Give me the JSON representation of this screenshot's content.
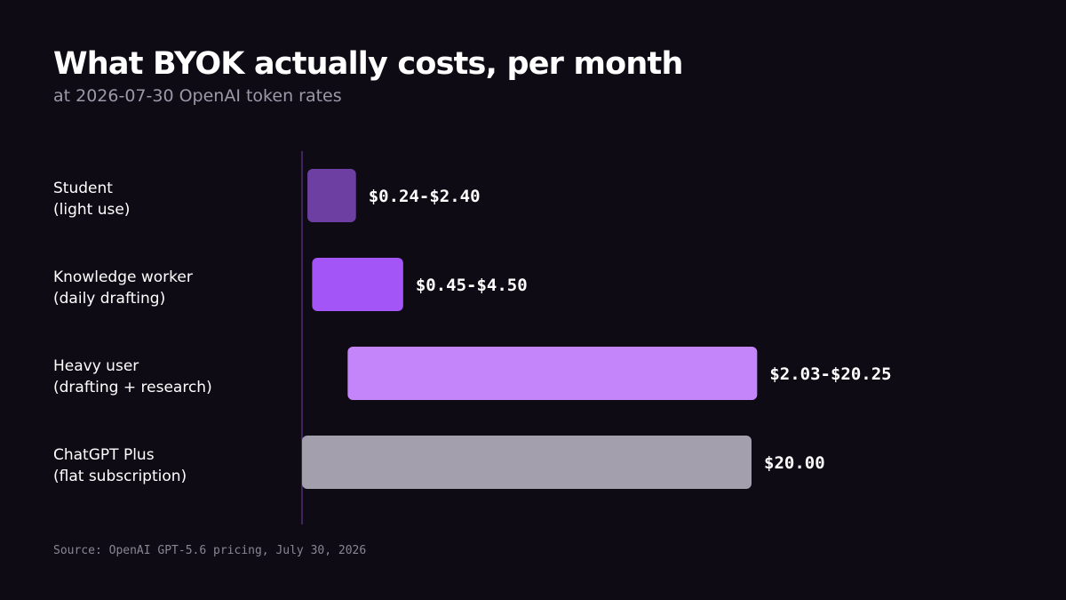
{
  "chart_data": {
    "type": "bar",
    "orientation": "horizontal",
    "title": "What BYOK actually costs, per month",
    "subtitle": "at 2026-07-30 OpenAI token rates",
    "source": "Source: OpenAI GPT-5.6 pricing, July 30, 2026",
    "unit": "USD per month",
    "xlim": [
      0,
      26
    ],
    "grid": false,
    "legend": "none",
    "categories": [
      {
        "line1": "Student",
        "line2": "(light use)"
      },
      {
        "line1": "Knowledge worker",
        "line2": "(daily drafting)"
      },
      {
        "line1": "Heavy user",
        "line2": "(drafting + research)"
      },
      {
        "line1": "ChatGPT Plus",
        "line2": "(flat subscription)"
      }
    ],
    "values": [
      {
        "low": 0.24,
        "high": 2.4,
        "label": "$0.24-$2.40",
        "color": "#6e3fa3"
      },
      {
        "low": 0.45,
        "high": 4.5,
        "label": "$0.45-$4.50",
        "color": "#a355f7"
      },
      {
        "low": 2.03,
        "high": 20.25,
        "label": "$2.03-$20.25",
        "color": "#c485fb"
      },
      {
        "low": 0,
        "high": 20.0,
        "label": "$20.00",
        "color": "#a39fac"
      }
    ],
    "axis_color": "#6e3fa3"
  }
}
